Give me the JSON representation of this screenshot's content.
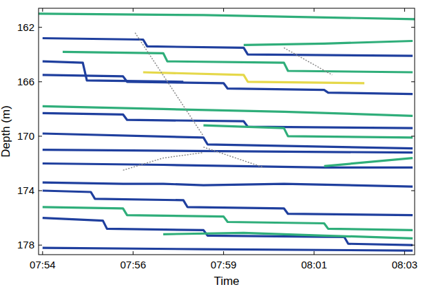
{
  "chart_data": {
    "type": "line",
    "x_label": "Time",
    "y_label": "Depth (m)",
    "xlim": [
      473.9,
      483.25
    ],
    "xticks": [
      {
        "value": 474,
        "label": "07:54"
      },
      {
        "value": 476.25,
        "label": "07:56"
      },
      {
        "value": 478.5,
        "label": "07:59"
      },
      {
        "value": 480.75,
        "label": "08:01"
      },
      {
        "value": 483,
        "label": "08:03"
      }
    ],
    "ylim": [
      178.7,
      160.6
    ],
    "yticks": [
      162,
      166,
      170,
      174,
      178
    ],
    "grid": false,
    "series": [
      {
        "color": "#2fae7a",
        "x": [
          473.9,
          478,
          483.25
        ],
        "values": [
          161.0,
          161.1,
          161.4
        ]
      },
      {
        "color": "#1f3f9e",
        "x": [
          474,
          476.5,
          476.6,
          479,
          479.1,
          483.2
        ],
        "values": [
          162.8,
          162.9,
          163.4,
          163.5,
          164.0,
          164.1
        ]
      },
      {
        "color": "#2fae7a",
        "x": [
          474.5,
          477,
          477.1,
          480,
          480.1,
          483.2
        ],
        "values": [
          163.8,
          163.9,
          164.5,
          164.6,
          165.2,
          165.3
        ]
      },
      {
        "color": "#1f3f9e",
        "x": [
          474,
          476,
          476.1,
          478.5,
          478.6,
          481,
          481.1,
          483.2
        ],
        "values": [
          165.5,
          165.6,
          166.0,
          166.1,
          166.5,
          166.6,
          166.8,
          166.9
        ]
      },
      {
        "color": "#e5d84a",
        "x": [
          476.5,
          479,
          479.1,
          482
        ],
        "values": [
          165.3,
          165.5,
          166.0,
          166.1
        ]
      },
      {
        "color": "#1f3f9e",
        "x": [
          474,
          475,
          475.1,
          477.5
        ],
        "values": [
          164.5,
          164.6,
          165.9,
          166.0
        ]
      },
      {
        "color": "#2fae7a",
        "x": [
          479,
          481,
          483.2
        ],
        "values": [
          163.3,
          163.2,
          163.0
        ]
      },
      {
        "color": "#2fae7a",
        "x": [
          474,
          477,
          480,
          483.2
        ],
        "values": [
          167.8,
          168.0,
          168.2,
          168.5
        ]
      },
      {
        "color": "#1f3f9e",
        "x": [
          474,
          476,
          476.1,
          479,
          479.1,
          483.2
        ],
        "values": [
          168.3,
          168.4,
          168.8,
          168.9,
          169.3,
          169.4
        ]
      },
      {
        "color": "#1f3f9e",
        "x": [
          474,
          478,
          478.1,
          483.2
        ],
        "values": [
          169.8,
          170.1,
          170.6,
          170.9
        ]
      },
      {
        "color": "#2fae7a",
        "x": [
          478,
          480,
          480.1,
          483.2
        ],
        "values": [
          169.2,
          169.4,
          170.0,
          170.1
        ]
      },
      {
        "color": "#1f3f9e",
        "x": [
          474,
          483.2
        ],
        "values": [
          171.0,
          171.2
        ]
      },
      {
        "color": "#1f3f9e",
        "x": [
          474,
          477,
          481,
          483.2
        ],
        "values": [
          172.0,
          172.1,
          172.3,
          172.3
        ]
      },
      {
        "color": "#2fae7a",
        "x": [
          481,
          483.2
        ],
        "values": [
          172.2,
          171.6
        ]
      },
      {
        "color": "#888888",
        "x": [
          476,
          477,
          478
        ],
        "values": [
          172.5,
          171.6,
          171.2
        ]
      },
      {
        "color": "#888888",
        "x": [
          478,
          479.5
        ],
        "values": [
          170.8,
          172.3
        ]
      },
      {
        "color": "#888888",
        "x": [
          476.3,
          478
        ],
        "values": [
          162.4,
          170.0
        ]
      },
      {
        "color": "#888888",
        "x": [
          480,
          481.2
        ],
        "values": [
          163.5,
          165.5
        ]
      },
      {
        "color": "#1f3f9e",
        "x": [
          474,
          476,
          477,
          478,
          480,
          483.2
        ],
        "values": [
          173.4,
          173.5,
          173.5,
          173.6,
          173.5,
          173.7
        ]
      },
      {
        "color": "#1f3f9e",
        "x": [
          474,
          475.2,
          475.3,
          477.5,
          477.6,
          480,
          480.1,
          483.2
        ],
        "values": [
          174.0,
          174.1,
          174.6,
          174.7,
          175.2,
          175.3,
          175.7,
          175.8
        ]
      },
      {
        "color": "#2fae7a",
        "x": [
          474,
          476,
          476.1,
          478.5,
          478.6,
          481,
          481.1,
          483.2
        ],
        "values": [
          175.2,
          175.3,
          175.8,
          175.9,
          176.3,
          176.4,
          176.8,
          176.9
        ]
      },
      {
        "color": "#1f3f9e",
        "x": [
          474,
          475.5,
          475.6,
          478,
          478.1,
          481.5,
          481.6,
          483.2
        ],
        "values": [
          176.0,
          176.2,
          176.8,
          176.9,
          177.3,
          177.4,
          177.9,
          178.0
        ]
      },
      {
        "color": "#2fae7a",
        "x": [
          477,
          479,
          481,
          483.2
        ],
        "values": [
          177.2,
          177.1,
          177.3,
          177.5
        ]
      },
      {
        "color": "#1f3f9e",
        "x": [
          474,
          478,
          483.2
        ],
        "values": [
          178.2,
          178.3,
          178.4
        ]
      }
    ]
  }
}
